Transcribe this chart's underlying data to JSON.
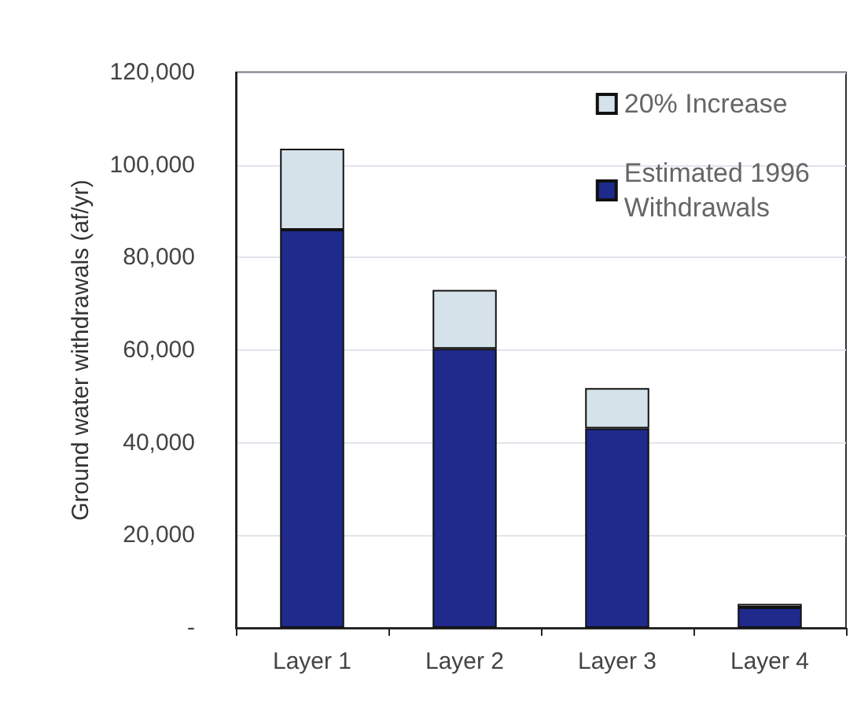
{
  "chart_data": {
    "type": "bar",
    "ylabel": "Ground water withdrawals (af/yr)",
    "categories": [
      "Layer 1",
      "Layer 2",
      "Layer 3",
      "Layer 4"
    ],
    "series": [
      {
        "name": "Estimated 1996 Withdrawals",
        "color": "#1f2a8c",
        "values": [
          86000,
          60300,
          43100,
          4400
        ]
      },
      {
        "name": "20% Increase",
        "color": "#d6e2ea",
        "values": [
          17500,
          12700,
          8700,
          800
        ]
      }
    ],
    "stacked": true,
    "ylim": [
      0,
      120000
    ],
    "yticks": [
      {
        "value": 0,
        "label": "-"
      },
      {
        "value": 20000,
        "label": "20,000"
      },
      {
        "value": 40000,
        "label": "40,000"
      },
      {
        "value": 60000,
        "label": "60,000"
      },
      {
        "value": 80000,
        "label": "80,000"
      },
      {
        "value": 100000,
        "label": "100,000"
      },
      {
        "value": 120000,
        "label": "120,000"
      }
    ],
    "grid": "y",
    "legend": "top right"
  }
}
